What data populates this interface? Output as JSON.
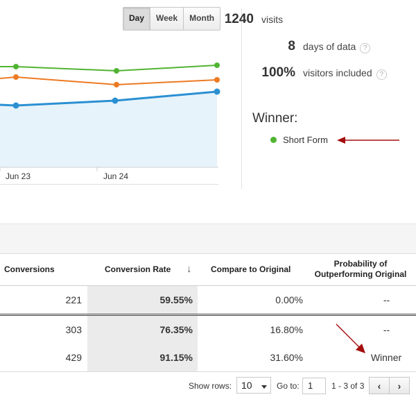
{
  "period_toggle": {
    "day": "Day",
    "week": "Week",
    "month": "Month",
    "selected": "Day"
  },
  "chart": {
    "x_labels": [
      "Jun 23",
      "Jun 24"
    ],
    "colors": {
      "green": "#50b432",
      "orange": "#ed7a22",
      "blue": "#2b8fd2",
      "area": "#e6f3fb"
    }
  },
  "stats": [
    {
      "value": "1240",
      "label": "visits",
      "help": false
    },
    {
      "value": "8",
      "label": "days of data",
      "help": true
    },
    {
      "value": "100%",
      "label": "visitors included",
      "help": true
    }
  ],
  "help_glyph": "?",
  "winner": {
    "title": "Winner:",
    "name": "Short Form",
    "dot_color": "#50b432",
    "arrow_color": "#a40e0e"
  },
  "table": {
    "headers": {
      "conversions": "Conversions",
      "conversion_rate": "Conversion Rate",
      "sort_icon": "↓",
      "compare": "Compare to Original",
      "prob_line1": "Probability of",
      "prob_line2": "Outperforming Original"
    },
    "rows": [
      {
        "conversions": "221",
        "rate": "59.55%",
        "compare": "0.00%",
        "prob": "--"
      },
      {
        "conversions": "303",
        "rate": "76.35%",
        "compare": "16.80%",
        "prob": "--"
      },
      {
        "conversions": "429",
        "rate": "91.15%",
        "compare": "31.60%",
        "prob": "Winner"
      }
    ]
  },
  "pagination": {
    "show_rows_label": "Show rows:",
    "rows_value": "10",
    "goto_label": "Go to:",
    "page_value": "1",
    "range_text": "1 - 3 of 3",
    "prev_icon": "‹",
    "next_icon": "›"
  }
}
